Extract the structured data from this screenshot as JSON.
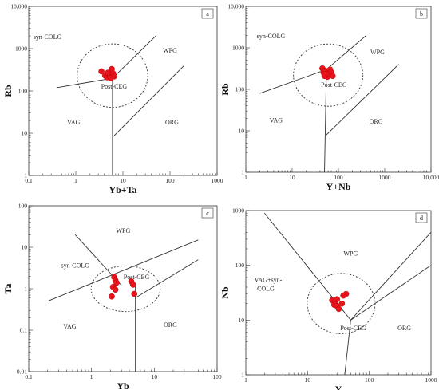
{
  "chart_data": [
    {
      "type": "scatter",
      "panel": "a",
      "xlabel": "Yb+Ta",
      "ylabel": "Rb",
      "xlim": [
        0.1,
        1000
      ],
      "ylim": [
        1,
        10000
      ],
      "xscale": "log",
      "yscale": "log",
      "x_ticks": [
        "0.1",
        "1",
        "10",
        "100",
        "1000"
      ],
      "y_ticks": [
        "1",
        "10",
        "100",
        "1000",
        "10,000"
      ],
      "fields": [
        "syn-COLG",
        "WPG",
        "VAG",
        "ORG",
        "Post-CEG"
      ],
      "boundaries": [
        [
          [
            0.4,
            120
          ],
          [
            6,
            200
          ]
        ],
        [
          [
            6,
            200
          ],
          [
            50,
            2000
          ]
        ],
        [
          [
            6,
            1
          ],
          [
            6,
            200
          ]
        ],
        [
          [
            6,
            8
          ],
          [
            200,
            400
          ]
        ]
      ],
      "dashed_circle": {
        "center": [
          6,
          230
        ],
        "radius_decades": 0.75
      },
      "points": [
        {
          "x": 3.5,
          "y": 290
        },
        {
          "x": 4.2,
          "y": 230
        },
        {
          "x": 4.6,
          "y": 210
        },
        {
          "x": 5.0,
          "y": 250
        },
        {
          "x": 5.3,
          "y": 240
        },
        {
          "x": 5.8,
          "y": 330
        },
        {
          "x": 6.2,
          "y": 260
        },
        {
          "x": 6.5,
          "y": 220
        },
        {
          "x": 5.5,
          "y": 200
        },
        {
          "x": 4.8,
          "y": 270
        }
      ]
    },
    {
      "type": "scatter",
      "panel": "b",
      "xlabel": "Y+Nb",
      "ylabel": "Rb",
      "xlim": [
        1,
        10000
      ],
      "ylim": [
        1,
        10000
      ],
      "xscale": "log",
      "yscale": "log",
      "x_ticks": [
        "1",
        "10",
        "100",
        "1000",
        "10,000"
      ],
      "y_ticks": [
        "1",
        "10",
        "100",
        "1000",
        "10,000"
      ],
      "fields": [
        "syn-COLG",
        "WPG",
        "VAG",
        "ORG",
        "Post-CEG"
      ],
      "boundaries": [
        [
          [
            2,
            80
          ],
          [
            55,
            300
          ]
        ],
        [
          [
            55,
            300
          ],
          [
            400,
            2000
          ]
        ],
        [
          [
            50,
            1
          ],
          [
            55,
            300
          ]
        ],
        [
          [
            55,
            8
          ],
          [
            2000,
            400
          ]
        ]
      ],
      "dashed_circle": {
        "center": [
          60,
          220
        ],
        "radius_decades": 0.75
      },
      "points": [
        {
          "x": 45,
          "y": 320
        },
        {
          "x": 48,
          "y": 250
        },
        {
          "x": 52,
          "y": 280
        },
        {
          "x": 55,
          "y": 230
        },
        {
          "x": 58,
          "y": 200
        },
        {
          "x": 62,
          "y": 240
        },
        {
          "x": 66,
          "y": 300
        },
        {
          "x": 70,
          "y": 260
        },
        {
          "x": 75,
          "y": 210
        },
        {
          "x": 50,
          "y": 210
        }
      ]
    },
    {
      "type": "scatter",
      "panel": "c",
      "xlabel": "Yb",
      "ylabel": "Ta",
      "xlim": [
        0.1,
        100
      ],
      "ylim": [
        0.01,
        100
      ],
      "xscale": "log",
      "yscale": "log",
      "x_ticks": [
        "0.1",
        "1",
        "10",
        "100"
      ],
      "y_ticks": [
        "0.01",
        "0.1",
        "1",
        "10",
        "100"
      ],
      "fields": [
        "syn-COLG",
        "WPG",
        "VAG",
        "ORG",
        "Post-CEG"
      ],
      "boundaries": [
        [
          [
            0.55,
            20
          ],
          [
            3,
            1.2
          ]
        ],
        [
          [
            0.2,
            0.5
          ],
          [
            50,
            15
          ]
        ],
        [
          [
            5,
            0.01
          ],
          [
            5,
            1.2
          ]
        ],
        [
          [
            5,
            0.6
          ],
          [
            50,
            5
          ]
        ]
      ],
      "dashed_circle": {
        "center": [
          3.5,
          1
        ],
        "radius_decades": 0.55
      },
      "points": [
        {
          "x": 2.3,
          "y": 1.9
        },
        {
          "x": 2.4,
          "y": 1.6
        },
        {
          "x": 2.5,
          "y": 1.4
        },
        {
          "x": 2.2,
          "y": 1.1
        },
        {
          "x": 2.4,
          "y": 0.95
        },
        {
          "x": 2.1,
          "y": 0.65
        },
        {
          "x": 4.3,
          "y": 1.5
        },
        {
          "x": 4.6,
          "y": 1.25
        },
        {
          "x": 4.8,
          "y": 0.75
        }
      ]
    },
    {
      "type": "scatter",
      "panel": "d",
      "xlabel": "Y",
      "ylabel": "Nb",
      "xlim": [
        1,
        1000
      ],
      "ylim": [
        1,
        1000
      ],
      "xscale": "log",
      "yscale": "log",
      "x_ticks": [
        "1",
        "10",
        "100",
        "1000"
      ],
      "y_ticks": [
        "1",
        "10",
        "100",
        "1000"
      ],
      "fields": [
        "WPG",
        "VAG+syn-COLG",
        "ORG",
        "Post-CEG"
      ],
      "boundaries": [
        [
          [
            2,
            900
          ],
          [
            50,
            10
          ]
        ],
        [
          [
            50,
            10
          ],
          [
            1000,
            400
          ]
        ],
        [
          [
            40,
            1
          ],
          [
            50,
            10
          ]
        ],
        [
          [
            50,
            10
          ],
          [
            1000,
            100
          ]
        ]
      ],
      "dashed_circle": {
        "center": [
          35,
          20
        ],
        "radius_decades": 0.55
      },
      "points": [
        {
          "x": 25,
          "y": 23
        },
        {
          "x": 27,
          "y": 19
        },
        {
          "x": 28,
          "y": 22
        },
        {
          "x": 30,
          "y": 18
        },
        {
          "x": 32,
          "y": 16
        },
        {
          "x": 30,
          "y": 24
        },
        {
          "x": 36,
          "y": 20
        },
        {
          "x": 42,
          "y": 30
        },
        {
          "x": 38,
          "y": 28
        }
      ]
    }
  ]
}
